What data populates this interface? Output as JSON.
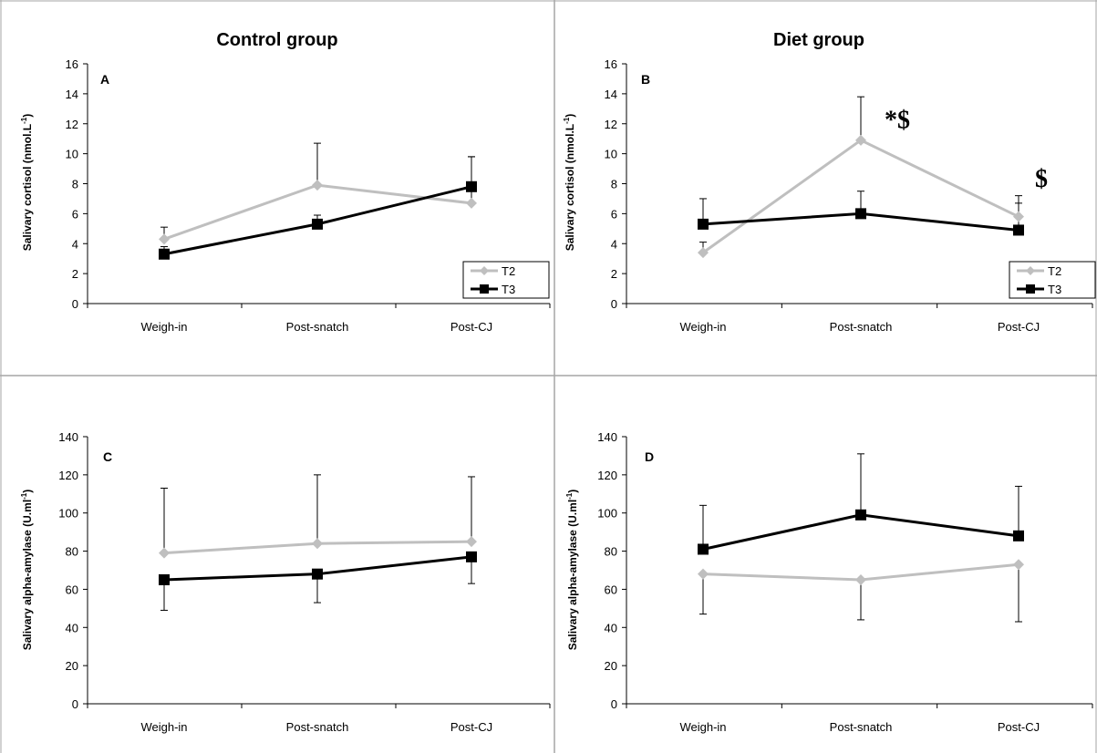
{
  "colors": {
    "T2": "#bfbfbf",
    "T3": "#000000",
    "divider": "#a6a6a6"
  },
  "chart_data": [
    {
      "panel": "A",
      "type": "line",
      "title": "Control group",
      "ylabel": "Salivary cortisol (nmol.L",
      "ylabel_sup": "-1",
      "ylabel_end": ")",
      "ylim": [
        0,
        16
      ],
      "yticks": [
        "0",
        "2",
        "4",
        "6",
        "8",
        "10",
        "12",
        "14",
        "16"
      ],
      "categories": [
        "Weigh-in",
        "Post-snatch",
        "Post-CJ"
      ],
      "legend": "bottom-right",
      "series": [
        {
          "name": "T2",
          "values": [
            4.3,
            7.9,
            6.7
          ],
          "err_up": [
            0.8,
            2.8,
            3.1
          ],
          "err_down": [
            0,
            0,
            0
          ]
        },
        {
          "name": "T3",
          "values": [
            3.3,
            5.3,
            7.8
          ],
          "err_up": [
            0.5,
            0.6,
            2.0
          ],
          "err_down": [
            0,
            0,
            0
          ]
        }
      ],
      "annotations": []
    },
    {
      "panel": "B",
      "type": "line",
      "title": "Diet group",
      "ylabel": "Salivary cortisol (nmol.L",
      "ylabel_sup": "-1",
      "ylabel_end": ")",
      "ylim": [
        0,
        16
      ],
      "yticks": [
        "0",
        "2",
        "4",
        "6",
        "8",
        "10",
        "12",
        "14",
        "16"
      ],
      "categories": [
        "Weigh-in",
        "Post-snatch",
        "Post-CJ"
      ],
      "legend": "bottom-right",
      "series": [
        {
          "name": "T2",
          "values": [
            3.4,
            10.9,
            5.8
          ],
          "err_up": [
            0.7,
            2.9,
            1.4
          ],
          "err_down": [
            0,
            0,
            0
          ]
        },
        {
          "name": "T3",
          "values": [
            5.3,
            6.0,
            4.9
          ],
          "err_up": [
            1.7,
            1.5,
            1.8
          ],
          "err_down": [
            0,
            0,
            0
          ]
        }
      ],
      "annotations": [
        {
          "text": "*$",
          "x": "Post-snatch",
          "y": 11.7
        },
        {
          "text": "$",
          "x": "Post-CJ",
          "y": 7.8
        }
      ]
    },
    {
      "panel": "C",
      "type": "line",
      "title": "",
      "ylabel": "Salivary alpha-amylase  (U.ml",
      "ylabel_sup": "-1",
      "ylabel_end": ")",
      "ylim": [
        0,
        140
      ],
      "yticks": [
        "0",
        "20",
        "40",
        "60",
        "80",
        "100",
        "120",
        "140"
      ],
      "categories": [
        "Weigh-in",
        "Post-snatch",
        "Post-CJ"
      ],
      "legend": "none",
      "series": [
        {
          "name": "T2",
          "values": [
            79,
            84,
            85
          ],
          "err_up": [
            34,
            36,
            34
          ],
          "err_down": [
            0,
            0,
            0
          ]
        },
        {
          "name": "T3",
          "values": [
            65,
            68,
            77
          ],
          "err_up": [
            0,
            0,
            0
          ],
          "err_down": [
            16,
            15,
            14
          ]
        }
      ],
      "annotations": []
    },
    {
      "panel": "D",
      "type": "line",
      "title": "",
      "ylabel": "Salivary alpha-amylase  (U.ml",
      "ylabel_sup": "-1",
      "ylabel_end": ")",
      "ylim": [
        0,
        140
      ],
      "yticks": [
        "0",
        "20",
        "40",
        "60",
        "80",
        "100",
        "120",
        "140"
      ],
      "categories": [
        "Weigh-in",
        "Post-snatch",
        "Post-CJ"
      ],
      "legend": "none",
      "series": [
        {
          "name": "T2",
          "values": [
            68,
            65,
            73
          ],
          "err_up": [
            0,
            0,
            0
          ],
          "err_down": [
            21,
            21,
            30
          ]
        },
        {
          "name": "T3",
          "values": [
            81,
            99,
            88
          ],
          "err_up": [
            23,
            32,
            26
          ],
          "err_down": [
            0,
            0,
            0
          ]
        }
      ],
      "annotations": []
    }
  ]
}
